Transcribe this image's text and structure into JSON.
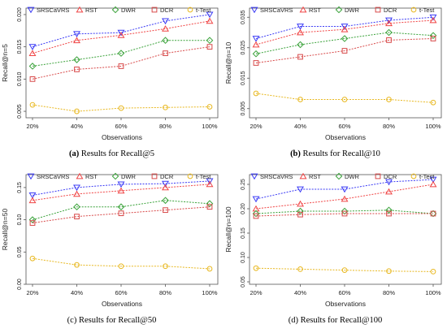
{
  "chart_data": [
    {
      "type": "line",
      "caption_prefix": "(a)",
      "caption_text": " Results for Recall@5",
      "caption_prefix_bold": true,
      "xlabel": "Observations",
      "ylabel": "Recall@n=5",
      "categories": [
        "20%",
        "40%",
        "60%",
        "80%",
        "100%"
      ],
      "ylim": [
        0.004,
        0.021
      ],
      "yticks": [
        "0.005",
        "0.010",
        "0.015",
        "0.020"
      ],
      "ytick_values": [
        0.005,
        0.01,
        0.015,
        0.02
      ],
      "series": [
        {
          "name": "SRSCaVRS",
          "color": "#3b3bf5",
          "marker": "triangle-down",
          "values": [
            0.015,
            0.017,
            0.0172,
            0.019,
            0.02
          ]
        },
        {
          "name": "RST",
          "color": "#f04545",
          "marker": "triangle-up",
          "values": [
            0.014,
            0.016,
            0.0168,
            0.0178,
            0.019
          ]
        },
        {
          "name": "DWR",
          "color": "#3aa23a",
          "marker": "diamond",
          "values": [
            0.012,
            0.013,
            0.014,
            0.016,
            0.016
          ]
        },
        {
          "name": "DCR",
          "color": "#d84a4a",
          "marker": "square",
          "values": [
            0.01,
            0.0115,
            0.012,
            0.014,
            0.015
          ]
        },
        {
          "name": "t-Test",
          "color": "#e8b820",
          "marker": "circle",
          "values": [
            0.006,
            0.005,
            0.0055,
            0.0056,
            0.0057
          ]
        }
      ]
    },
    {
      "type": "line",
      "caption_prefix": "(b)",
      "caption_text": " Results for Recall@10",
      "caption_prefix_bold": true,
      "xlabel": "Observations",
      "ylabel": "Recall@n=10",
      "categories": [
        "20%",
        "40%",
        "60%",
        "80%",
        "100%"
      ],
      "ylim": [
        0.002,
        0.038
      ],
      "yticks": [
        "0.005",
        "0.015",
        "0.025",
        "0.035"
      ],
      "ytick_values": [
        0.005,
        0.015,
        0.025,
        0.035
      ],
      "series": [
        {
          "name": "SRSCaVRS",
          "color": "#3b3bf5",
          "marker": "triangle-down",
          "values": [
            0.028,
            0.032,
            0.032,
            0.034,
            0.035
          ]
        },
        {
          "name": "RST",
          "color": "#f04545",
          "marker": "triangle-up",
          "values": [
            0.026,
            0.03,
            0.031,
            0.033,
            0.034
          ]
        },
        {
          "name": "DWR",
          "color": "#3aa23a",
          "marker": "diamond",
          "values": [
            0.023,
            0.026,
            0.028,
            0.03,
            0.029
          ]
        },
        {
          "name": "DCR",
          "color": "#d84a4a",
          "marker": "square",
          "values": [
            0.02,
            0.022,
            0.024,
            0.0275,
            0.028
          ]
        },
        {
          "name": "t-Test",
          "color": "#e8b820",
          "marker": "circle",
          "values": [
            0.01,
            0.008,
            0.008,
            0.008,
            0.007
          ]
        }
      ]
    },
    {
      "type": "line",
      "caption_prefix": "(c)",
      "caption_text": " Results for Recall@50",
      "caption_prefix_bold": false,
      "xlabel": "Observations",
      "ylabel": "Recall@n=50",
      "categories": [
        "20%",
        "40%",
        "60%",
        "80%",
        "100%"
      ],
      "ylim": [
        0.0,
        0.17
      ],
      "yticks": [
        "0.00",
        "0.05",
        "0.10",
        "0.15"
      ],
      "ytick_values": [
        0.0,
        0.05,
        0.1,
        0.15
      ],
      "series": [
        {
          "name": "SRSCaVRS",
          "color": "#3b3bf5",
          "marker": "triangle-down",
          "values": [
            0.138,
            0.15,
            0.155,
            0.156,
            0.16
          ]
        },
        {
          "name": "RST",
          "color": "#f04545",
          "marker": "triangle-up",
          "values": [
            0.13,
            0.14,
            0.145,
            0.15,
            0.155
          ]
        },
        {
          "name": "DWR",
          "color": "#3aa23a",
          "marker": "diamond",
          "values": [
            0.1,
            0.12,
            0.12,
            0.13,
            0.125
          ]
        },
        {
          "name": "DCR",
          "color": "#d84a4a",
          "marker": "square",
          "values": [
            0.095,
            0.105,
            0.11,
            0.115,
            0.12
          ]
        },
        {
          "name": "t-Test",
          "color": "#e8b820",
          "marker": "circle",
          "values": [
            0.04,
            0.03,
            0.028,
            0.028,
            0.024
          ]
        }
      ]
    },
    {
      "type": "line",
      "caption_prefix": "(d)",
      "caption_text": " Results for Recall@100",
      "caption_prefix_bold": false,
      "xlabel": "Observations",
      "ylabel": "Recall@n=100",
      "categories": [
        "20%",
        "40%",
        "60%",
        "80%",
        "100%"
      ],
      "ylim": [
        0.045,
        0.27
      ],
      "yticks": [
        "0.05",
        "0.10",
        "0.15",
        "0.20",
        "0.25"
      ],
      "ytick_values": [
        0.05,
        0.1,
        0.15,
        0.2,
        0.25
      ],
      "series": [
        {
          "name": "SRSCaVRS",
          "color": "#3b3bf5",
          "marker": "triangle-down",
          "values": [
            0.22,
            0.24,
            0.24,
            0.255,
            0.26
          ]
        },
        {
          "name": "RST",
          "color": "#f04545",
          "marker": "triangle-up",
          "values": [
            0.2,
            0.21,
            0.22,
            0.235,
            0.25
          ]
        },
        {
          "name": "DWR",
          "color": "#3aa23a",
          "marker": "diamond",
          "values": [
            0.19,
            0.195,
            0.195,
            0.197,
            0.19
          ]
        },
        {
          "name": "DCR",
          "color": "#d84a4a",
          "marker": "square",
          "values": [
            0.185,
            0.188,
            0.19,
            0.19,
            0.19
          ]
        },
        {
          "name": "t-Test",
          "color": "#e8b820",
          "marker": "circle",
          "values": [
            0.078,
            0.076,
            0.074,
            0.072,
            0.071
          ]
        }
      ]
    }
  ]
}
